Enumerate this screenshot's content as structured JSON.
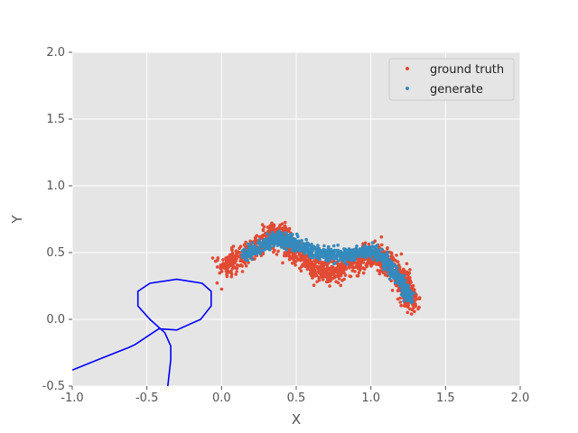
{
  "chart_data": {
    "type": "scatter",
    "title": "",
    "xlabel": "X",
    "ylabel": "Y",
    "xlim": [
      -1.0,
      2.0
    ],
    "ylim": [
      -0.5,
      2.0
    ],
    "xticks": [
      "-1.0",
      "-0.5",
      "0.0",
      "0.5",
      "1.0",
      "1.5",
      "2.0"
    ],
    "xtick_values": [
      -1.0,
      -0.5,
      0.0,
      0.5,
      1.0,
      1.5,
      2.0
    ],
    "yticks": [
      "-0.5",
      "0.0",
      "0.5",
      "1.0",
      "1.5",
      "2.0"
    ],
    "ytick_values": [
      -0.5,
      0.0,
      0.5,
      1.0,
      1.5,
      2.0
    ],
    "grid": true,
    "legend_position": "top-right",
    "style": "ggplot",
    "series": [
      {
        "name": "ground truth",
        "kind": "scatter",
        "color": "#E24A33",
        "shape": "double-arch point cloud",
        "count": 1400,
        "noise": 0.045,
        "band_center": [
          [
            0.0,
            0.38
          ],
          [
            0.1,
            0.45
          ],
          [
            0.2,
            0.53
          ],
          [
            0.3,
            0.6
          ],
          [
            0.38,
            0.63
          ],
          [
            0.45,
            0.56
          ],
          [
            0.55,
            0.45
          ],
          [
            0.65,
            0.36
          ],
          [
            0.75,
            0.35
          ],
          [
            0.85,
            0.4
          ],
          [
            0.95,
            0.47
          ],
          [
            1.05,
            0.48
          ],
          [
            1.12,
            0.42
          ],
          [
            1.2,
            0.3
          ],
          [
            1.25,
            0.2
          ],
          [
            1.28,
            0.14
          ]
        ]
      },
      {
        "name": "generate",
        "kind": "scatter",
        "color": "#348ABD",
        "shape": "double-arch point cloud",
        "count": 1100,
        "noise": 0.025,
        "band_center": [
          [
            0.15,
            0.47
          ],
          [
            0.25,
            0.54
          ],
          [
            0.35,
            0.6
          ],
          [
            0.42,
            0.6
          ],
          [
            0.5,
            0.56
          ],
          [
            0.6,
            0.52
          ],
          [
            0.7,
            0.49
          ],
          [
            0.8,
            0.47
          ],
          [
            0.9,
            0.5
          ],
          [
            1.0,
            0.52
          ],
          [
            1.08,
            0.47
          ],
          [
            1.15,
            0.36
          ],
          [
            1.22,
            0.25
          ],
          [
            1.26,
            0.16
          ]
        ]
      },
      {
        "name": "",
        "kind": "line",
        "color": "#0000FF",
        "points": [
          [
            -1.0,
            -0.38
          ],
          [
            -0.8,
            -0.29
          ],
          [
            -0.62,
            -0.21
          ],
          [
            -0.58,
            -0.19
          ],
          [
            -0.5,
            -0.13
          ],
          [
            -0.42,
            -0.07
          ],
          [
            -0.3,
            -0.08
          ],
          [
            -0.14,
            0.0
          ],
          [
            -0.07,
            0.1
          ],
          [
            -0.07,
            0.21
          ],
          [
            -0.13,
            0.27
          ],
          [
            -0.3,
            0.3
          ],
          [
            -0.48,
            0.27
          ],
          [
            -0.56,
            0.21
          ],
          [
            -0.56,
            0.1
          ],
          [
            -0.48,
            0.0
          ],
          [
            -0.38,
            -0.1
          ],
          [
            -0.34,
            -0.2
          ],
          [
            -0.34,
            -0.3
          ],
          [
            -0.36,
            -0.5
          ]
        ]
      }
    ]
  }
}
